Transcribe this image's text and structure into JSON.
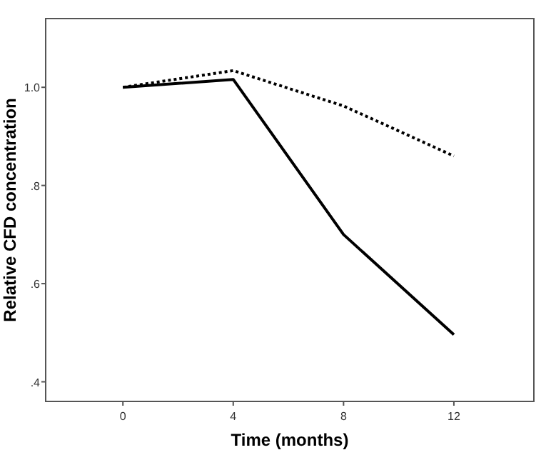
{
  "chart_data": {
    "type": "line",
    "xlabel": "Time (months)",
    "ylabel": "Relative CFD concentration",
    "x": [
      0,
      4,
      8,
      12
    ],
    "series": [
      {
        "color": "#000000",
        "values": [
          1.0,
          1.016,
          0.7,
          0.496
        ],
        "line_style": "solid"
      },
      {
        "color": "#000000",
        "values": [
          1.0,
          1.034,
          0.962,
          0.86
        ],
        "line_style": "dotted"
      }
    ],
    "xlim": [
      -2.8,
      14.9
    ],
    "ylim": [
      0.36,
      1.14
    ],
    "xticks": [
      0,
      4,
      8,
      12
    ],
    "yticks": [
      {
        "value": 0.4,
        "label": ".4"
      },
      {
        "value": 0.6,
        "label": ".6"
      },
      {
        "value": 0.8,
        "label": ".8"
      },
      {
        "value": 1.0,
        "label": "1.0"
      }
    ],
    "marker": "none"
  }
}
